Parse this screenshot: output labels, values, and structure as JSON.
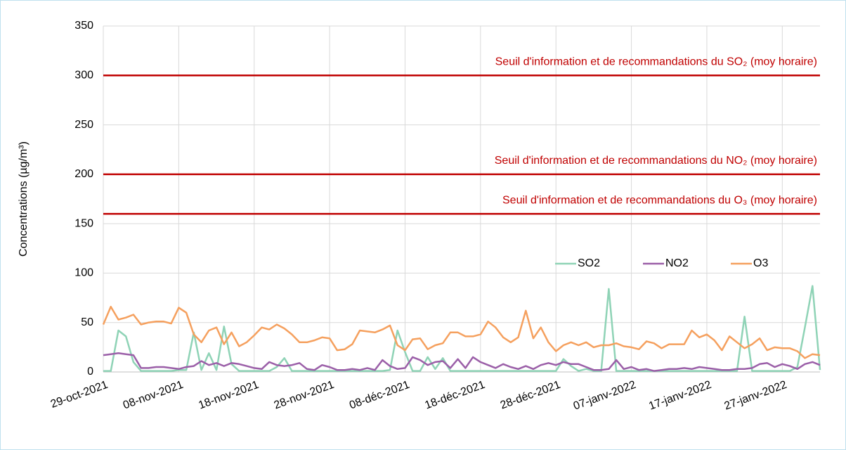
{
  "chart_data": {
    "type": "line",
    "ylabel": "Concentrations (µg/m³)",
    "categories": [
      "29-oct-2021",
      null,
      null,
      null,
      null,
      null,
      null,
      null,
      null,
      null,
      "08-nov-2021",
      null,
      null,
      null,
      null,
      null,
      null,
      null,
      null,
      null,
      "18-nov-2021",
      null,
      null,
      null,
      null,
      null,
      null,
      null,
      null,
      null,
      "28-nov-2021",
      null,
      null,
      null,
      null,
      null,
      null,
      null,
      null,
      null,
      "08-déc-2021",
      null,
      null,
      null,
      null,
      null,
      null,
      null,
      null,
      null,
      "18-déc-2021",
      null,
      null,
      null,
      null,
      null,
      null,
      null,
      null,
      null,
      "28-déc-2021",
      null,
      null,
      null,
      null,
      null,
      null,
      null,
      null,
      null,
      "07-janv-2022",
      null,
      null,
      null,
      null,
      null,
      null,
      null,
      null,
      null,
      "17-janv-2022",
      null,
      null,
      null,
      null,
      null,
      null,
      null,
      null,
      null,
      "27-janv-2022",
      null,
      null,
      null,
      null,
      null
    ],
    "series": [
      {
        "name": "SO2",
        "color": "#8fd3b6",
        "values": [
          1,
          1,
          42,
          36,
          10,
          1,
          1,
          1,
          1,
          1,
          2,
          2,
          40,
          2,
          19,
          2,
          46,
          8,
          1,
          1,
          1,
          1,
          1,
          5,
          14,
          1,
          1,
          1,
          1,
          1,
          1,
          1,
          1,
          1,
          1,
          1,
          1,
          1,
          2,
          42,
          20,
          1,
          1,
          15,
          3,
          14,
          1,
          1,
          1,
          1,
          1,
          1,
          1,
          1,
          1,
          1,
          1,
          1,
          1,
          1,
          1,
          13,
          6,
          1,
          3,
          1,
          1,
          84,
          1,
          1,
          1,
          1,
          1,
          1,
          1,
          1,
          1,
          1,
          1,
          1,
          1,
          1,
          1,
          1,
          1,
          56,
          1,
          1,
          1,
          1,
          1,
          1,
          5,
          45,
          87,
          2
        ]
      },
      {
        "name": "NO2",
        "color": "#9b5fa8",
        "values": [
          17,
          18,
          19,
          18,
          17,
          4,
          4,
          5,
          5,
          4,
          3,
          5,
          6,
          11,
          7,
          9,
          6,
          9,
          8,
          6,
          4,
          3,
          10,
          7,
          6,
          7,
          9,
          3,
          2,
          7,
          5,
          2,
          2,
          3,
          2,
          4,
          2,
          12,
          6,
          3,
          4,
          15,
          12,
          7,
          10,
          11,
          4,
          13,
          4,
          15,
          10,
          7,
          4,
          8,
          5,
          3,
          6,
          3,
          7,
          9,
          7,
          10,
          8,
          8,
          5,
          2,
          2,
          3,
          12,
          3,
          5,
          2,
          3,
          1,
          2,
          3,
          3,
          4,
          3,
          5,
          4,
          3,
          2,
          2,
          3,
          3,
          4,
          8,
          9,
          5,
          8,
          6,
          3,
          8,
          10,
          7
        ]
      },
      {
        "name": "O3",
        "color": "#f5a05e",
        "values": [
          48,
          66,
          53,
          55,
          58,
          48,
          50,
          51,
          51,
          49,
          65,
          60,
          38,
          30,
          42,
          45,
          28,
          40,
          26,
          30,
          37,
          45,
          43,
          48,
          44,
          38,
          30,
          30,
          32,
          35,
          34,
          22,
          23,
          28,
          42,
          41,
          40,
          43,
          47,
          27,
          22,
          33,
          34,
          23,
          27,
          29,
          40,
          40,
          36,
          36,
          38,
          51,
          45,
          35,
          30,
          35,
          62,
          34,
          45,
          30,
          21,
          27,
          30,
          27,
          30,
          25,
          27,
          27,
          29,
          26,
          25,
          23,
          31,
          29,
          24,
          28,
          28,
          28,
          42,
          35,
          38,
          32,
          22,
          36,
          30,
          24,
          28,
          34,
          22,
          25,
          24,
          24,
          21,
          14,
          18,
          17
        ]
      }
    ],
    "reference_lines": [
      {
        "value": 300,
        "label": "Seuil d'information et de recommandations du SO₂ (moy horaire)",
        "color": "#c00000"
      },
      {
        "value": 200,
        "label": "Seuil d'information et de recommandations du NO₂ (moy horaire)",
        "color": "#c00000"
      },
      {
        "value": 160,
        "label": "Seuil d'information et de recommandations du O₃ (moy horaire)",
        "color": "#c00000"
      }
    ],
    "ylim": [
      0,
      350
    ],
    "yticks": [
      0,
      50,
      100,
      150,
      200,
      250,
      300,
      350
    ],
    "grid": true
  }
}
